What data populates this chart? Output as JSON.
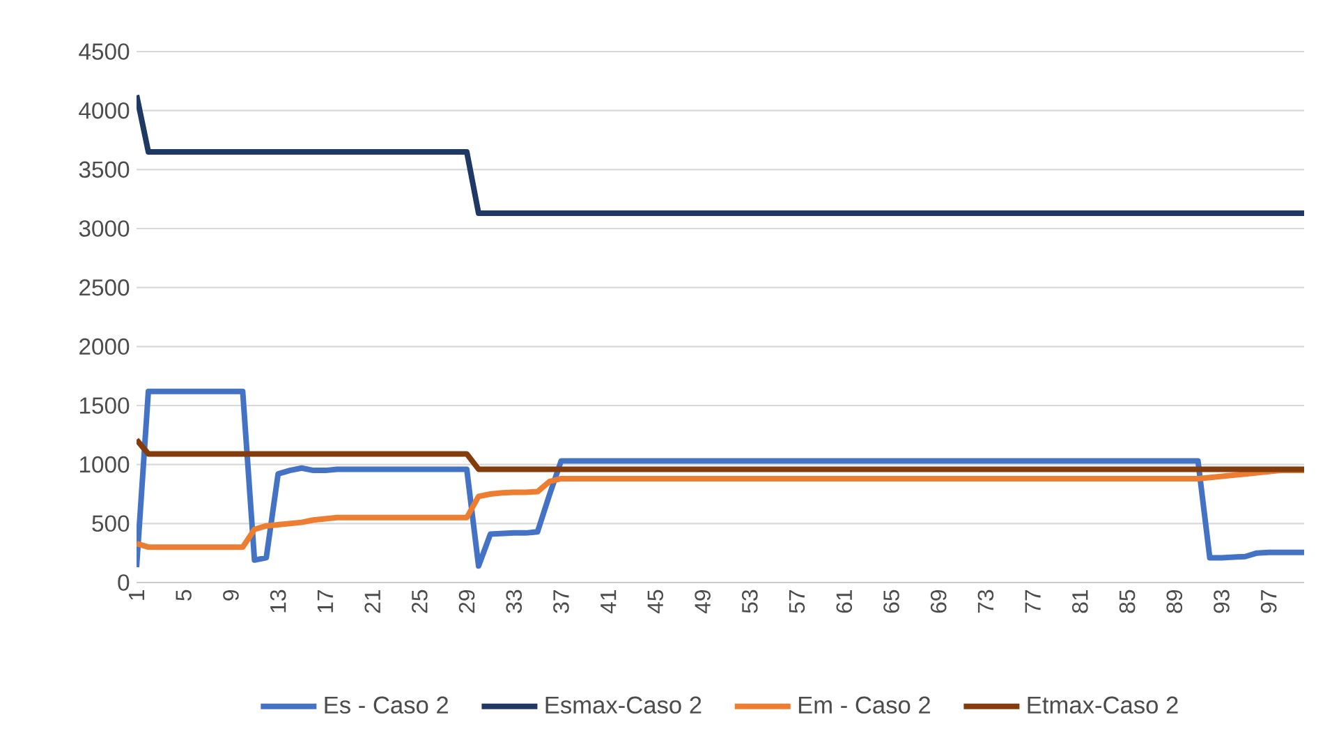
{
  "chart_data": {
    "type": "line",
    "categories": [
      "1",
      null,
      null,
      null,
      "5",
      null,
      null,
      null,
      "9",
      null,
      null,
      null,
      "13",
      null,
      null,
      null,
      "17",
      null,
      null,
      null,
      "21",
      null,
      null,
      null,
      "25",
      null,
      null,
      null,
      "29",
      null,
      null,
      null,
      "33",
      null,
      null,
      null,
      "37",
      null,
      null,
      null,
      "41",
      null,
      null,
      null,
      "45",
      null,
      null,
      null,
      "49",
      null,
      null,
      null,
      "53",
      null,
      null,
      null,
      "57",
      null,
      null,
      null,
      "61",
      null,
      null,
      null,
      "65",
      null,
      null,
      null,
      "69",
      null,
      null,
      null,
      "73",
      null,
      null,
      null,
      "77",
      null,
      null,
      null,
      "81",
      null,
      null,
      null,
      "85",
      null,
      null,
      null,
      "89",
      null,
      null,
      null,
      "93",
      null,
      null,
      null,
      "97",
      null,
      null,
      null
    ],
    "series": [
      {
        "name": "Es - Caso 2",
        "color": "#4472c4",
        "values": [
          130,
          1620,
          1620,
          1620,
          1620,
          1620,
          1620,
          1620,
          1620,
          1620,
          190,
          210,
          920,
          950,
          970,
          950,
          950,
          960,
          960,
          960,
          960,
          960,
          960,
          960,
          960,
          960,
          960,
          960,
          960,
          140,
          410,
          415,
          420,
          420,
          430,
          740,
          1030,
          1030,
          1030,
          1030,
          1030,
          1030,
          1030,
          1030,
          1030,
          1030,
          1030,
          1030,
          1030,
          1030,
          1030,
          1030,
          1030,
          1030,
          1030,
          1030,
          1030,
          1030,
          1030,
          1030,
          1030,
          1030,
          1030,
          1030,
          1030,
          1030,
          1030,
          1030,
          1030,
          1030,
          1030,
          1030,
          1030,
          1030,
          1030,
          1030,
          1030,
          1030,
          1030,
          1030,
          1030,
          1030,
          1030,
          1030,
          1030,
          1030,
          1030,
          1030,
          1030,
          1030,
          1030,
          210,
          210,
          215,
          220,
          250,
          255,
          255,
          255,
          255
        ]
      },
      {
        "name": "Esmax-Caso 2",
        "color": "#203864",
        "values": [
          4130,
          3650,
          3650,
          3650,
          3650,
          3650,
          3650,
          3650,
          3650,
          3650,
          3650,
          3650,
          3650,
          3650,
          3650,
          3650,
          3650,
          3650,
          3650,
          3650,
          3650,
          3650,
          3650,
          3650,
          3650,
          3650,
          3650,
          3650,
          3650,
          3130,
          3130,
          3130,
          3130,
          3130,
          3130,
          3130,
          3130,
          3130,
          3130,
          3130,
          3130,
          3130,
          3130,
          3130,
          3130,
          3130,
          3130,
          3130,
          3130,
          3130,
          3130,
          3130,
          3130,
          3130,
          3130,
          3130,
          3130,
          3130,
          3130,
          3130,
          3130,
          3130,
          3130,
          3130,
          3130,
          3130,
          3130,
          3130,
          3130,
          3130,
          3130,
          3130,
          3130,
          3130,
          3130,
          3130,
          3130,
          3130,
          3130,
          3130,
          3130,
          3130,
          3130,
          3130,
          3130,
          3130,
          3130,
          3130,
          3130,
          3130,
          3130,
          3130,
          3130,
          3130,
          3130,
          3130,
          3130,
          3130,
          3130,
          3130
        ]
      },
      {
        "name": "Em - Caso 2",
        "color": "#ed7d31",
        "values": [
          330,
          300,
          300,
          300,
          300,
          300,
          300,
          300,
          300,
          300,
          450,
          480,
          490,
          500,
          510,
          530,
          540,
          550,
          550,
          550,
          550,
          550,
          550,
          550,
          550,
          550,
          550,
          550,
          550,
          730,
          750,
          760,
          765,
          765,
          770,
          855,
          880,
          880,
          880,
          880,
          880,
          880,
          880,
          880,
          880,
          880,
          880,
          880,
          880,
          880,
          880,
          880,
          880,
          880,
          880,
          880,
          880,
          880,
          880,
          880,
          880,
          880,
          880,
          880,
          880,
          880,
          880,
          880,
          880,
          880,
          880,
          880,
          880,
          880,
          880,
          880,
          880,
          880,
          880,
          880,
          880,
          880,
          880,
          880,
          880,
          880,
          880,
          880,
          880,
          880,
          880,
          890,
          900,
          910,
          920,
          930,
          940,
          950,
          950,
          950
        ]
      },
      {
        "name": "Etmax-Caso 2",
        "color": "#843c0c",
        "values": [
          1210,
          1090,
          1090,
          1090,
          1090,
          1090,
          1090,
          1090,
          1090,
          1090,
          1090,
          1090,
          1090,
          1090,
          1090,
          1090,
          1090,
          1090,
          1090,
          1090,
          1090,
          1090,
          1090,
          1090,
          1090,
          1090,
          1090,
          1090,
          1090,
          960,
          960,
          960,
          960,
          960,
          960,
          960,
          960,
          960,
          960,
          960,
          960,
          960,
          960,
          960,
          960,
          960,
          960,
          960,
          960,
          960,
          960,
          960,
          960,
          960,
          960,
          960,
          960,
          960,
          960,
          960,
          960,
          960,
          960,
          960,
          960,
          960,
          960,
          960,
          960,
          960,
          960,
          960,
          960,
          960,
          960,
          960,
          960,
          960,
          960,
          960,
          960,
          960,
          960,
          960,
          960,
          960,
          960,
          960,
          960,
          960,
          960,
          960,
          960,
          960,
          960,
          960,
          960,
          960,
          960,
          960
        ]
      }
    ],
    "ylim": [
      0,
      4500
    ],
    "yticks": [
      0,
      500,
      1000,
      1500,
      2000,
      2500,
      3000,
      3500,
      4000,
      4500
    ],
    "grid": "y",
    "legend": "bottom",
    "line_style": "solid"
  }
}
